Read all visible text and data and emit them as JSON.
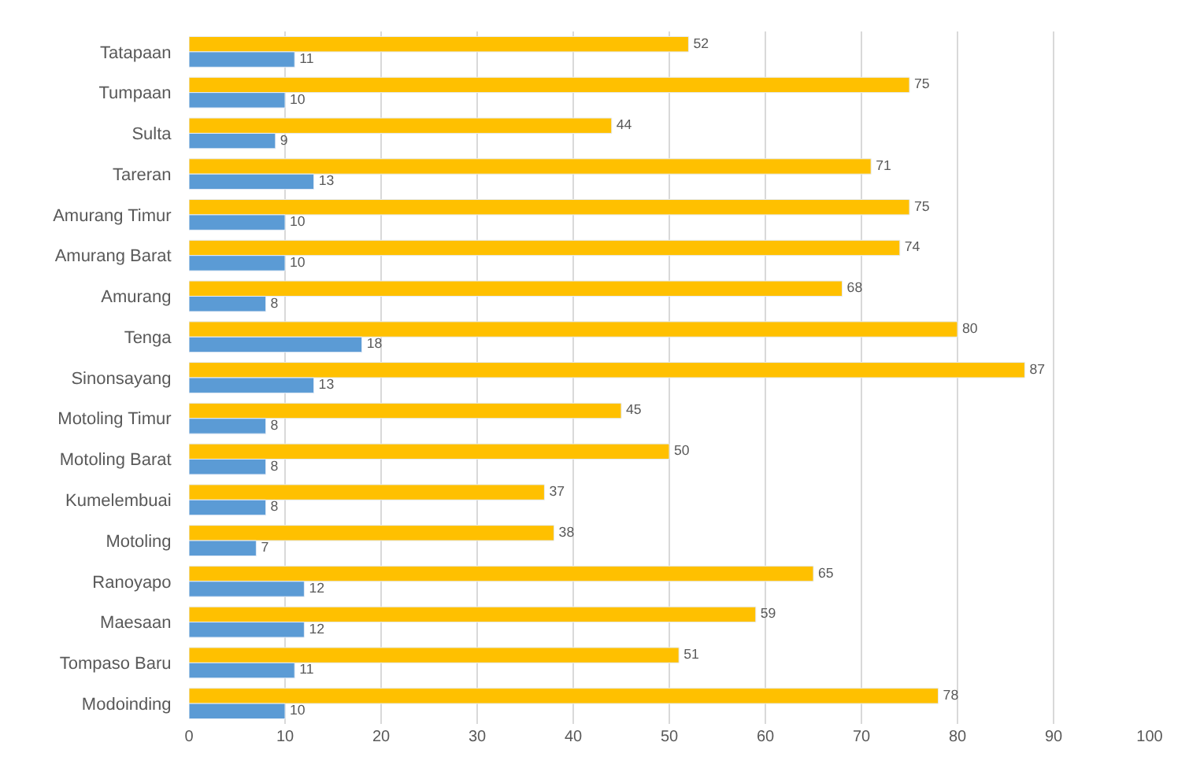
{
  "chart_data": {
    "type": "bar",
    "orientation": "horizontal",
    "categories": [
      "Tatapaan",
      "Tumpaan",
      "Sulta",
      "Tareran",
      "Amurang Timur",
      "Amurang Barat",
      "Amurang",
      "Tenga",
      "Sinonsayang",
      "Motoling Timur",
      "Motoling Barat",
      "Kumelembuai",
      "Motoling",
      "Ranoyapo",
      "Maesaan",
      "Tompaso Baru",
      "Modoinding"
    ],
    "series": [
      {
        "color": "#ffc000",
        "values": [
          52,
          75,
          44,
          71,
          75,
          74,
          68,
          80,
          87,
          45,
          50,
          37,
          38,
          65,
          59,
          51,
          78
        ]
      },
      {
        "color": "#5b9bd5",
        "values": [
          11,
          10,
          9,
          13,
          10,
          10,
          8,
          18,
          13,
          8,
          8,
          8,
          7,
          12,
          12,
          11,
          10
        ]
      }
    ],
    "xlim": [
      0,
      100
    ],
    "xticks": [
      0,
      10,
      20,
      30,
      40,
      50,
      60,
      70,
      80,
      90,
      100
    ],
    "grid": "x",
    "data_labels": true
  }
}
